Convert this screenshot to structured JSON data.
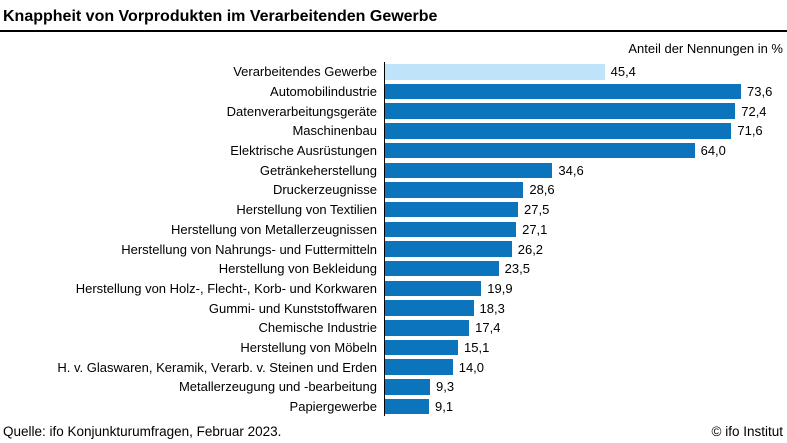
{
  "header": {
    "title": "Knappheit von Vorprodukten im Verarbeitenden Gewerbe",
    "subtitle": "Anteil der Nennungen in %"
  },
  "footer": {
    "source": "Quelle: ifo Konjunkturumfragen, Februar 2023.",
    "copyright": "© ifo Institut"
  },
  "colors": {
    "bar": "#0b74bc",
    "bar_highlight": "#bfe3f9",
    "axis": "#000000",
    "text": "#000000"
  },
  "chart_data": {
    "type": "bar",
    "orientation": "horizontal",
    "title": "Knappheit von Vorprodukten im Verarbeitenden Gewerbe",
    "xlabel": "Anteil der Nennungen in %",
    "xlim": [
      0,
      80
    ],
    "grid": false,
    "legend": "none",
    "highlight_index": 0,
    "categories": [
      "Verarbeitendes Gewerbe",
      "Automobilindustrie",
      "Datenverarbeitungsgeräte",
      "Maschinenbau",
      "Elektrische Ausrüstungen",
      "Getränkeherstellung",
      "Druckerzeugnisse",
      "Herstellung von Textilien",
      "Herstellung von Metallerzeugnissen",
      "Herstellung von Nahrungs- und Futtermitteln",
      "Herstellung von Bekleidung",
      "Herstellung von Holz-, Flecht-, Korb- und Korkwaren",
      "Gummi- und Kunststoffwaren",
      "Chemische Industrie",
      "Herstellung von Möbeln",
      "H. v. Glaswaren, Keramik, Verarb. v. Steinen und Erden",
      "Metallerzeugung und -bearbeitung",
      "Papiergewerbe"
    ],
    "values": [
      45.4,
      73.6,
      72.4,
      71.6,
      64.0,
      34.6,
      28.6,
      27.5,
      27.1,
      26.2,
      23.5,
      19.9,
      18.3,
      17.4,
      15.1,
      14.0,
      9.3,
      9.1
    ],
    "value_labels": [
      "45,4",
      "73,6",
      "72,4",
      "71,6",
      "64,0",
      "34,6",
      "28,6",
      "27,5",
      "27,1",
      "26,2",
      "23,5",
      "19,9",
      "18,3",
      "17,4",
      "15,1",
      "14,0",
      "9,3",
      "9,1"
    ]
  }
}
